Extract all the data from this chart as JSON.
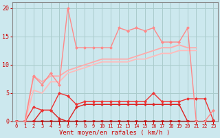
{
  "background_color": "#cce8ee",
  "grid_color": "#aacccc",
  "x_labels": [
    "0",
    "1",
    "2",
    "3",
    "4",
    "5",
    "6",
    "7",
    "8",
    "9",
    "10",
    "11",
    "12",
    "13",
    "14",
    "15",
    "16",
    "17",
    "18",
    "19",
    "20",
    "21",
    "22",
    "23"
  ],
  "xlabel": "Vent moyen/en rafales ( km/h )",
  "ylim": [
    0,
    21
  ],
  "yticks": [
    0,
    5,
    10,
    15,
    20
  ],
  "series": [
    {
      "name": "zero_line_markers",
      "x": [
        0,
        1,
        2,
        3,
        4,
        5,
        6,
        7,
        8,
        9,
        10,
        11,
        12,
        13,
        14,
        15,
        16,
        17,
        18,
        19,
        20,
        21,
        22,
        23
      ],
      "y": [
        0,
        0,
        0,
        0,
        0,
        0,
        0,
        0,
        0,
        0,
        0,
        0,
        0,
        0,
        0,
        0,
        0,
        0,
        0,
        0,
        0,
        0,
        0,
        0
      ],
      "color": "#cc0000",
      "lw": 1.5,
      "marker": "v",
      "ms": 2.5
    },
    {
      "name": "dark_red_low1",
      "x": [
        0,
        1,
        2,
        3,
        4,
        5,
        6,
        7,
        8,
        9,
        10,
        11,
        12,
        13,
        14,
        15,
        16,
        17,
        18,
        19,
        20,
        21,
        22,
        23
      ],
      "y": [
        0,
        0,
        0,
        2,
        2,
        0.5,
        0,
        2.5,
        3,
        3,
        3,
        3,
        3,
        3,
        3,
        3,
        3,
        3,
        3,
        3,
        0,
        0,
        0,
        0
      ],
      "color": "#dd2222",
      "lw": 1.0,
      "marker": "D",
      "ms": 2.0
    },
    {
      "name": "dark_red_low2",
      "x": [
        0,
        1,
        2,
        3,
        4,
        5,
        6,
        7,
        8,
        9,
        10,
        11,
        12,
        13,
        14,
        15,
        16,
        17,
        18,
        19,
        20,
        21,
        22,
        23
      ],
      "y": [
        0,
        0,
        2.5,
        2,
        2,
        5,
        4.5,
        3,
        3.5,
        3.5,
        3.5,
        3.5,
        3.5,
        3.5,
        3.5,
        3.5,
        5,
        3.5,
        3.5,
        3.5,
        4,
        4,
        4,
        0.2
      ],
      "color": "#ee3333",
      "lw": 1.0,
      "marker": "D",
      "ms": 2.0
    },
    {
      "name": "smooth_upper1",
      "x": [
        0,
        1,
        2,
        3,
        4,
        5,
        6,
        7,
        8,
        9,
        10,
        11,
        12,
        13,
        14,
        15,
        16,
        17,
        18,
        19,
        20,
        21
      ],
      "y": [
        0,
        0,
        8,
        7,
        8,
        8,
        9,
        9.5,
        10,
        10.5,
        11,
        11,
        11,
        11,
        11.5,
        12,
        12.5,
        13,
        13,
        13.5,
        13,
        13
      ],
      "color": "#ffaaaa",
      "lw": 1.3,
      "marker": null,
      "ms": 0
    },
    {
      "name": "smooth_upper2",
      "x": [
        0,
        1,
        2,
        3,
        4,
        5,
        6,
        7,
        8,
        9,
        10,
        11,
        12,
        13,
        14,
        15,
        16,
        17,
        18,
        19,
        20,
        21
      ],
      "y": [
        0,
        0,
        5.5,
        5,
        7,
        7,
        8.5,
        9,
        9.5,
        10,
        10.5,
        10.5,
        10.5,
        10.5,
        11,
        11,
        11.5,
        12,
        12,
        12.5,
        12.5,
        12.5
      ],
      "color": "#ffbbbb",
      "lw": 1.3,
      "marker": null,
      "ms": 0
    },
    {
      "name": "peaked_line",
      "x": [
        0,
        1,
        2,
        3,
        4,
        5,
        6,
        7,
        8,
        9,
        10,
        11,
        12,
        13,
        14,
        15,
        16,
        17,
        18,
        19,
        20,
        21,
        22,
        23
      ],
      "y": [
        0,
        0,
        8,
        6.5,
        8.5,
        6.5,
        20,
        13,
        13,
        13,
        13,
        13,
        16.5,
        16,
        16.5,
        16,
        16.5,
        14,
        14,
        14,
        16.5,
        0,
        0,
        2
      ],
      "color": "#ff8888",
      "lw": 1.0,
      "marker": "D",
      "ms": 2.0
    }
  ]
}
